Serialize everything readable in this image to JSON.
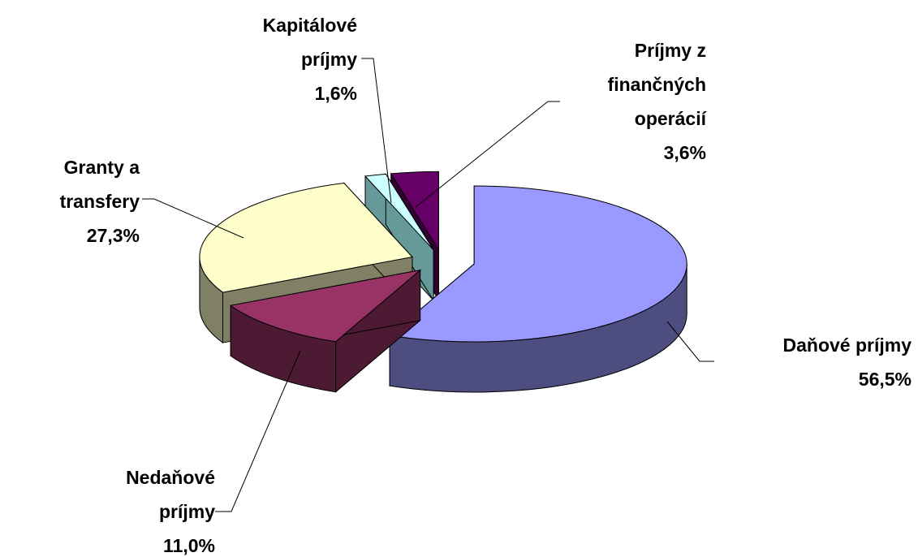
{
  "chart_data": {
    "type": "pie3d",
    "categories": [
      "Daňové príjmy",
      "Nedaňové príjmy",
      "Granty a transfery",
      "Kapitálové príjmy",
      "Príjmy z finančných operácií"
    ],
    "values": [
      56.5,
      11.0,
      27.3,
      1.6,
      3.6
    ],
    "value_labels": [
      "56,5%",
      "11,0%",
      "27,3%",
      "1,6%",
      "3,6%"
    ],
    "colors": [
      "#9999ff",
      "#993366",
      "#ffffcc",
      "#ccffff",
      "#660066"
    ],
    "side_colors": [
      "#4d4d80",
      "#4d1a33",
      "#808066",
      "#669999",
      "#330033"
    ]
  }
}
